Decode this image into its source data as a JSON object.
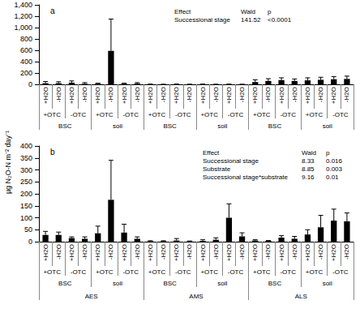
{
  "chart_data": [
    {
      "type": "bar",
      "title": "a",
      "categories": [
        "+H2O",
        "-H2O",
        "+H2O",
        "-H2O",
        "+H2O",
        "-H2O",
        "+H2O",
        "-H2O",
        "+H2O",
        "-H2O",
        "+H2O",
        "-H2O",
        "+H2O",
        "-H2O",
        "+H2O",
        "-H2O",
        "+H2O",
        "-H2O",
        "+H2O",
        "-H2O",
        "+H2O",
        "-H2O",
        "+H2O",
        "-H2O"
      ],
      "category_levels": [
        [
          "+OTC",
          "-OTC",
          "+OTC",
          "-OTC",
          "+OTC",
          "-OTC",
          "+OTC",
          "-OTC",
          "+OTC",
          "-OTC",
          "+OTC",
          "-OTC"
        ],
        [
          "BSC",
          "soil",
          "BSC",
          "soil",
          "BSC",
          "soil"
        ]
      ],
      "values": [
        20,
        20,
        30,
        10,
        10,
        590,
        10,
        15,
        2,
        1,
        3,
        1,
        2,
        1,
        2,
        1,
        40,
        60,
        75,
        60,
        70,
        80,
        90,
        95
      ],
      "errors": [
        30,
        25,
        30,
        20,
        10,
        560,
        10,
        15,
        3,
        2,
        3,
        2,
        3,
        2,
        3,
        2,
        40,
        40,
        40,
        35,
        45,
        45,
        45,
        50
      ],
      "color": "#000000",
      "ylim": [
        0,
        1400
      ],
      "yticks": [
        0,
        200,
        400,
        600,
        800,
        1000,
        1200,
        1400
      ],
      "grid": false,
      "annotation": {
        "rows": [
          [
            "Effect",
            "Wald",
            "p"
          ],
          [
            "Successional stage",
            141.52,
            "<0.0001"
          ]
        ]
      }
    },
    {
      "type": "bar",
      "title": "b",
      "ylabel": "µg N₂O-N m⁻² day⁻¹",
      "categories": [
        "+H2O",
        "-H2O",
        "+H2O",
        "-H2O",
        "+H2O",
        "-H2O",
        "+H2O",
        "-H2O",
        "+H2O",
        "-H2O",
        "+H2O",
        "-H2O",
        "+H2O",
        "-H2O",
        "+H2O",
        "-H2O",
        "+H2O",
        "-H2O",
        "+H2O",
        "-H2O",
        "+H2O",
        "-H2O",
        "+H2O",
        "-H2O"
      ],
      "category_levels": [
        [
          "+OTC",
          "-OTC",
          "+OTC",
          "-OTC",
          "+OTC",
          "-OTC",
          "+OTC",
          "-OTC",
          "+OTC",
          "-OTC",
          "+OTC",
          "-OTC"
        ],
        [
          "BSC",
          "soil",
          "BSC",
          "soil",
          "BSC",
          "soil"
        ],
        [
          "AES",
          "AMS",
          "ALS"
        ]
      ],
      "values": [
        28,
        28,
        15,
        12,
        35,
        175,
        38,
        12,
        2,
        2,
        5,
        1,
        3,
        8,
        100,
        22,
        5,
        3,
        17,
        12,
        30,
        60,
        88,
        85
      ],
      "errors": [
        15,
        12,
        5,
        8,
        30,
        165,
        35,
        8,
        2,
        2,
        8,
        2,
        5,
        8,
        58,
        15,
        3,
        2,
        8,
        10,
        20,
        50,
        48,
        35
      ],
      "color": "#000000",
      "ylim": [
        0,
        400
      ],
      "yticks": [
        0,
        50,
        100,
        150,
        200,
        250,
        300,
        350,
        400
      ],
      "grid": false,
      "annotation": {
        "rows": [
          [
            "Effect",
            "Wald",
            "p"
          ],
          [
            "Successional stage",
            8.33,
            0.016
          ],
          [
            "Substrate",
            8.85,
            0.003
          ],
          [
            "Successional stage*substrate",
            9.16,
            0.01
          ]
        ]
      }
    }
  ]
}
